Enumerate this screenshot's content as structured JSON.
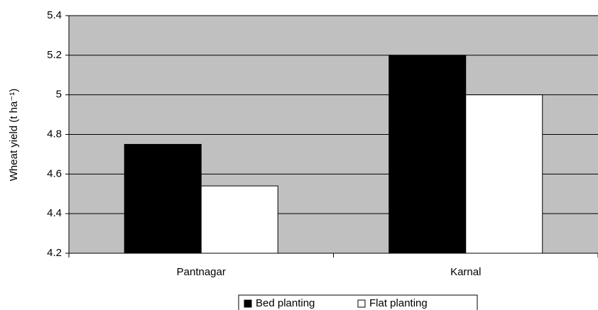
{
  "chart_data": {
    "type": "bar",
    "y_label": "Wheat yield (t ha⁻¹)",
    "categories": [
      "Pantnagar",
      "Karnal"
    ],
    "series": [
      {
        "name": "Bed planting",
        "color": "#000000",
        "values": [
          4.75,
          5.2
        ]
      },
      {
        "name": "Flat planting",
        "color": "#ffffff",
        "values": [
          4.54,
          5.0
        ]
      }
    ],
    "ylim": [
      4.2,
      5.4
    ],
    "yticks": [
      4.2,
      4.4,
      4.6,
      4.8,
      5,
      5.2,
      5.4
    ],
    "grid": true,
    "plot_background": "#c0c0c0",
    "legend": "bottom"
  }
}
